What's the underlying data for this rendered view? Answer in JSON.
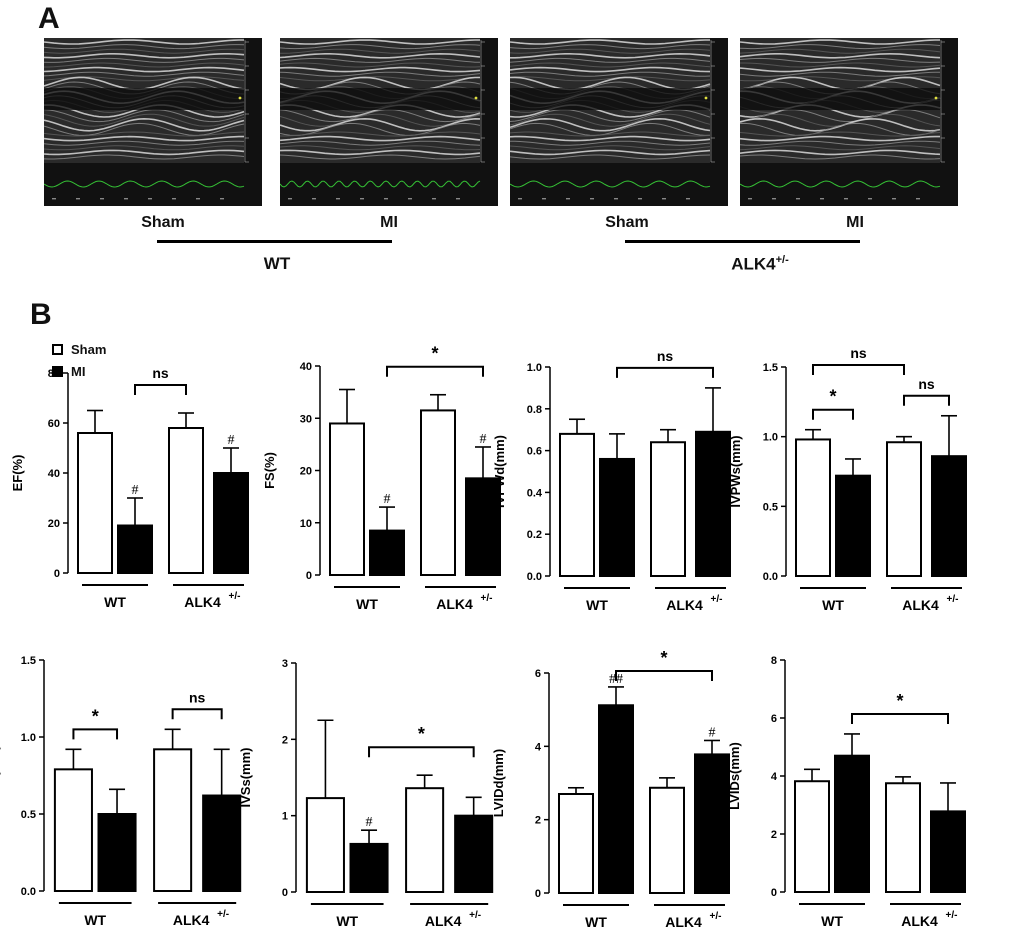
{
  "panels": {
    "a": "A",
    "b": "B"
  },
  "echo": {
    "groups": [
      "WT",
      "ALK4+/-"
    ],
    "images": [
      {
        "label": "Sham"
      },
      {
        "label": "MI"
      },
      {
        "label": "Sham"
      },
      {
        "label": "MI"
      }
    ]
  },
  "legend": {
    "sham": "Sham",
    "mi": "MI"
  },
  "colors": {
    "sham_fill": "#ffffff",
    "mi_fill": "#000000",
    "stroke": "#000000"
  },
  "group_labels": {
    "wt": "WT",
    "alk4": "ALK4",
    "alk4_sup": "+/-"
  },
  "chart_data": [
    {
      "type": "bar",
      "ylabel": "EF(%)",
      "ylim": [
        0,
        80
      ],
      "ticks": [
        0,
        20,
        40,
        60,
        80
      ],
      "categories": [
        "WT Sham",
        "WT MI",
        "ALK4+/- Sham",
        "ALK4+/- MI"
      ],
      "values": [
        56,
        19,
        58,
        40
      ],
      "errors": [
        9,
        11,
        6,
        10
      ],
      "marks": [
        "",
        "#",
        "",
        "#"
      ],
      "comparisons": [
        {
          "from": 1,
          "to": 2,
          "label": "ns"
        }
      ]
    },
    {
      "type": "bar",
      "ylabel": "FS(%)",
      "ylim": [
        0,
        40
      ],
      "ticks": [
        0,
        10,
        20,
        30,
        40
      ],
      "categories": [
        "WT Sham",
        "WT MI",
        "ALK4+/- Sham",
        "ALK4+/- MI"
      ],
      "values": [
        29,
        8.5,
        31.5,
        18.5
      ],
      "errors": [
        6.5,
        4.5,
        3,
        6
      ],
      "marks": [
        "",
        "#",
        "",
        "#"
      ],
      "comparisons": [
        {
          "from": 1,
          "to": 3,
          "label": "*"
        }
      ]
    },
    {
      "type": "bar",
      "ylabel": "IVPWd(mm)",
      "ylim": [
        0,
        1.0
      ],
      "ticks": [
        0.0,
        0.2,
        0.4,
        0.6,
        0.8,
        1.0
      ],
      "categories": [
        "WT Sham",
        "WT MI",
        "ALK4+/- Sham",
        "ALK4+/- MI"
      ],
      "values": [
        0.68,
        0.56,
        0.64,
        0.69
      ],
      "errors": [
        0.07,
        0.12,
        0.06,
        0.21
      ],
      "marks": [
        "",
        "",
        "",
        ""
      ],
      "comparisons": [
        {
          "from": 1,
          "to": 3,
          "label": "ns"
        }
      ]
    },
    {
      "type": "bar",
      "ylabel": "IVPWs(mm)",
      "ylim": [
        0,
        1.5
      ],
      "ticks": [
        0.0,
        0.5,
        1.0,
        1.5
      ],
      "categories": [
        "WT Sham",
        "WT MI",
        "ALK4+/- Sham",
        "ALK4+/- MI"
      ],
      "values": [
        0.98,
        0.72,
        0.96,
        0.86
      ],
      "errors": [
        0.07,
        0.12,
        0.04,
        0.29
      ],
      "marks": [
        "",
        "",
        "",
        ""
      ],
      "comparisons": [
        {
          "from": 0,
          "to": 1,
          "label": "*"
        },
        {
          "from": 2,
          "to": 3,
          "label": "ns"
        },
        {
          "from": 0,
          "to": 2,
          "label": "ns"
        }
      ]
    },
    {
      "type": "bar",
      "ylabel": "IVSd(mm)",
      "ylim": [
        0,
        1.5
      ],
      "ticks": [
        0.0,
        0.5,
        1.0,
        1.5
      ],
      "categories": [
        "WT Sham",
        "WT MI",
        "ALK4+/- Sham",
        "ALK4+/- MI"
      ],
      "values": [
        0.79,
        0.5,
        0.92,
        0.62
      ],
      "errors": [
        0.13,
        0.16,
        0.13,
        0.3
      ],
      "marks": [
        "",
        "",
        "",
        ""
      ],
      "comparisons": [
        {
          "from": 0,
          "to": 1,
          "label": "*"
        },
        {
          "from": 2,
          "to": 3,
          "label": "ns"
        }
      ]
    },
    {
      "type": "bar",
      "ylabel": "IVSs(mm)",
      "ylim": [
        0,
        3
      ],
      "ticks": [
        0,
        1,
        2,
        3
      ],
      "categories": [
        "WT Sham",
        "WT MI",
        "ALK4+/- Sham",
        "ALK4+/- MI"
      ],
      "values": [
        1.23,
        0.63,
        1.36,
        1.0
      ],
      "errors": [
        1.02,
        0.18,
        0.17,
        0.24
      ],
      "marks": [
        "",
        "#",
        "",
        ""
      ],
      "comparisons": [
        {
          "from": 1,
          "to": 3,
          "label": "*"
        }
      ]
    },
    {
      "type": "bar",
      "ylabel": "LVIDd(mm)",
      "ylim": [
        0,
        6
      ],
      "ticks": [
        0,
        2,
        4,
        6
      ],
      "categories": [
        "WT Sham",
        "WT MI",
        "ALK4+/- Sham",
        "ALK4+/- MI"
      ],
      "values": [
        2.7,
        5.12,
        2.87,
        3.78
      ],
      "errors": [
        0.17,
        0.5,
        0.27,
        0.38
      ],
      "marks": [
        "",
        "##",
        "",
        "#"
      ],
      "comparisons": [
        {
          "from": 1,
          "to": 3,
          "label": "*"
        }
      ]
    },
    {
      "type": "bar",
      "ylabel": "LVIDs(mm)",
      "ylim": [
        0,
        8
      ],
      "ticks": [
        0,
        2,
        4,
        6,
        8
      ],
      "categories": [
        "WT Sham",
        "WT MI",
        "ALK4+/- Sham",
        "ALK4+/- MI"
      ],
      "values": [
        3.82,
        4.7,
        3.75,
        2.78
      ],
      "errors": [
        0.41,
        0.75,
        0.22,
        0.98
      ],
      "marks": [
        "",
        "",
        "",
        ""
      ],
      "comparisons": [
        {
          "from": 1,
          "to": 3,
          "label": "*"
        }
      ]
    }
  ]
}
